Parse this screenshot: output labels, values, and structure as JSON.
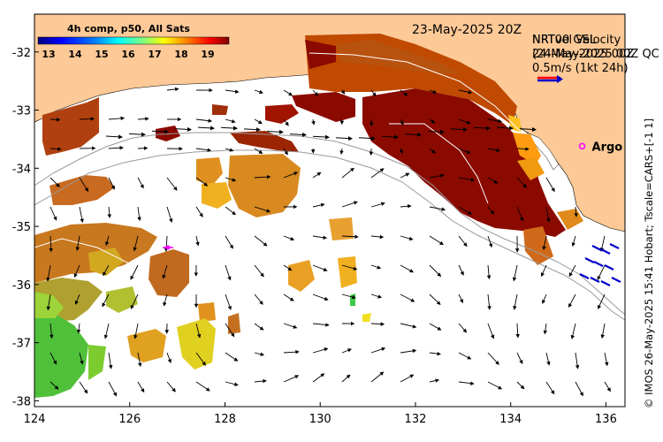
{
  "map": {
    "date_label": "23-May-2025 20Z",
    "lon_ticks": [
      "124",
      "126",
      "128",
      "130",
      "132",
      "134",
      "136"
    ],
    "lat_ticks": [
      "-32",
      "-33",
      "-34",
      "-35",
      "-36",
      "-37",
      "-38"
    ],
    "lon_range": [
      124,
      136.4
    ],
    "lat_range": [
      -38.1,
      -31.35
    ]
  },
  "colorbar": {
    "title": "4h comp, p50, All Sats",
    "ticks": [
      "13",
      "14",
      "15",
      "16",
      "17",
      "18",
      "19"
    ],
    "range": [
      12.6,
      19.8
    ],
    "colors": [
      "#00007f",
      "#0000ff",
      "#007fff",
      "#00ffff",
      "#7fff7f",
      "#ffff00",
      "#ff7f00",
      "#ff0000",
      "#7f0000"
    ]
  },
  "legend": {
    "line1": "NRT00 GSL",
    "line2": "24-May-2025 00Z",
    "line3": "NRTvel Velocity",
    "line4": "(24-May-2025 00Z QC",
    "scale_label": "0.5m/s (1kt 24h)"
  },
  "argo": {
    "label": "Argo",
    "lon": 135.5,
    "lat": -33.62,
    "color": "#ff00ff"
  },
  "credit": "© IMOS 26-May-2025 15:41 Hobart; Tscale=CARS+[-1 1]",
  "colors": {
    "land": "#fcc997",
    "ocean": "#ffffff",
    "marker": "#ff00ff",
    "arrow_qc": "#0000cc"
  }
}
